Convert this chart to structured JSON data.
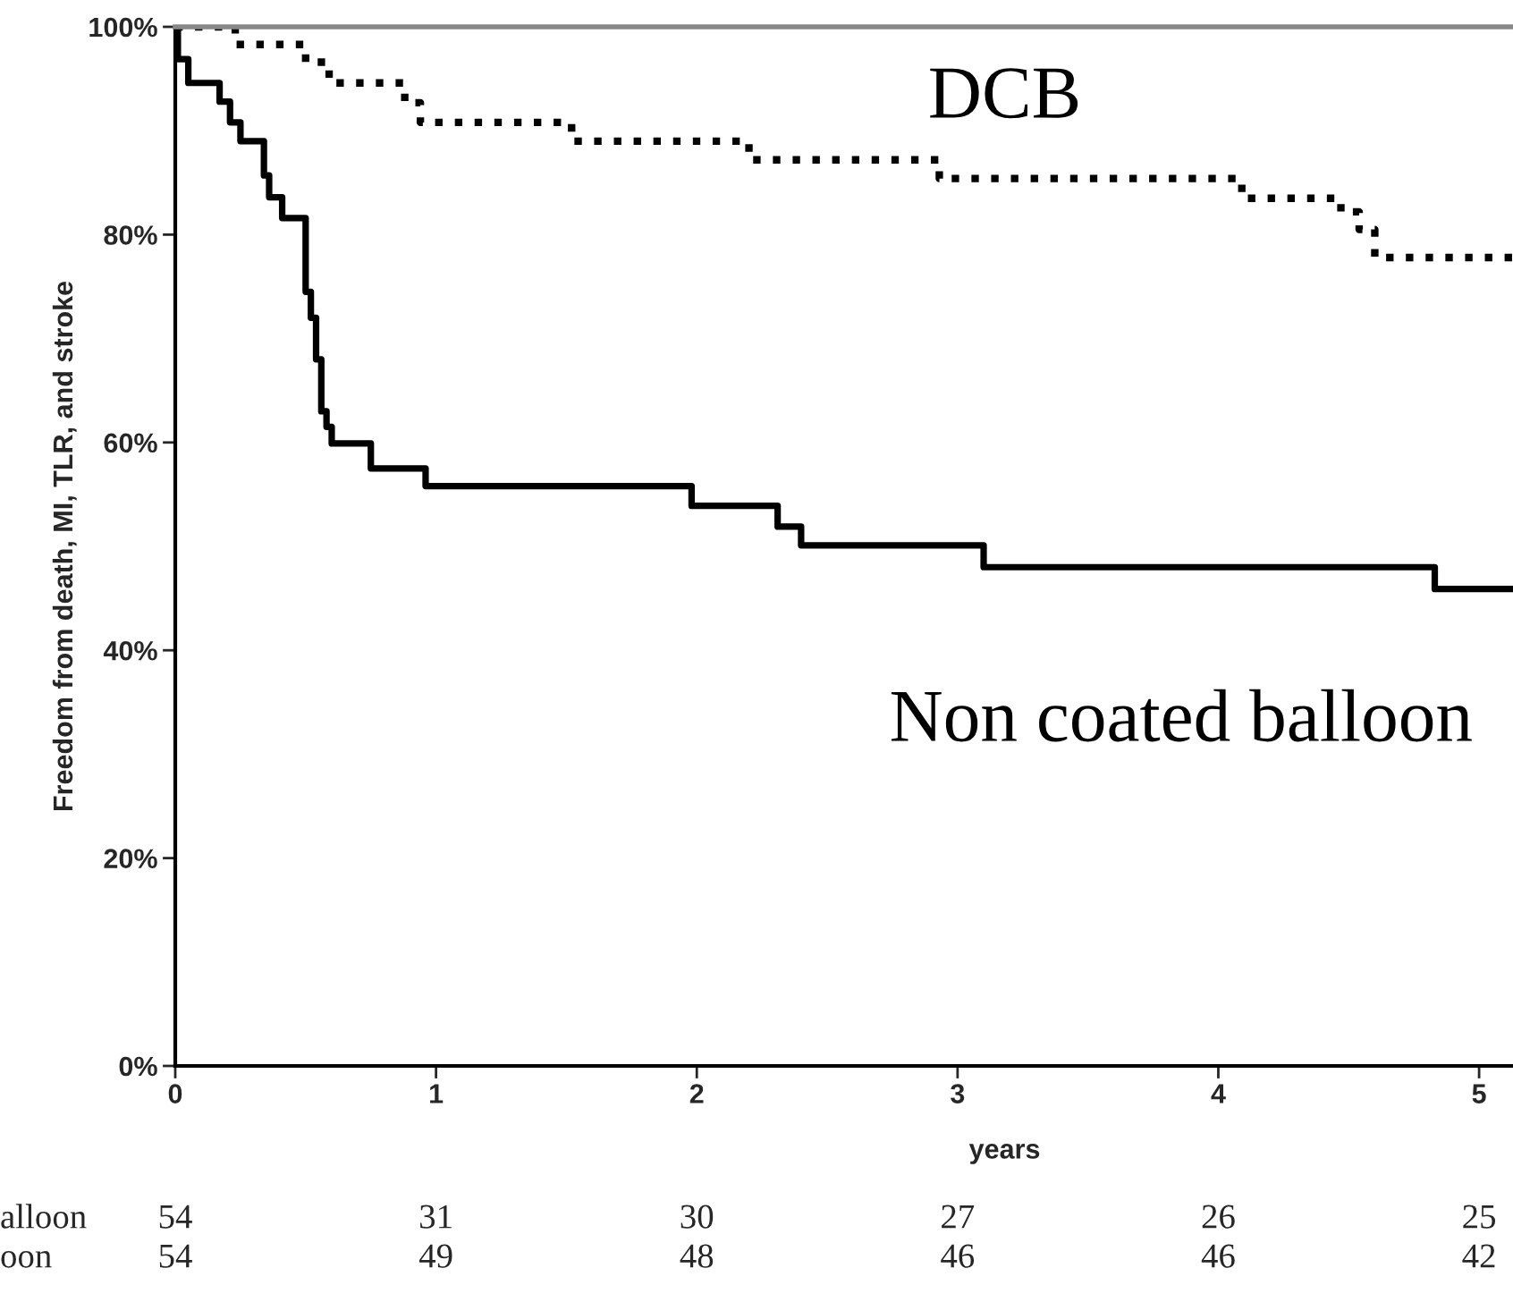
{
  "chart_data": {
    "type": "step",
    "xlabel": "years",
    "ylabel": "Freedom from death, MI, TLR, and stroke",
    "xlim": [
      0,
      5.13
    ],
    "ylim": [
      0,
      100
    ],
    "xticks": [
      0,
      1,
      2,
      3,
      4,
      5
    ],
    "yticks": [
      {
        "value": 0,
        "label": "0%"
      },
      {
        "value": 20,
        "label": "20%"
      },
      {
        "value": 40,
        "label": "40%"
      },
      {
        "value": 60,
        "label": "60%"
      },
      {
        "value": 80,
        "label": "80%"
      },
      {
        "value": 100,
        "label": "100%"
      }
    ],
    "grid": false,
    "legend": false,
    "marker": "none",
    "series": [
      {
        "name": "DCB",
        "color": "#000000",
        "line_style": "dotted",
        "x": [
          0,
          0.23,
          0.5,
          0.59,
          0.88,
          0.94,
          1.52,
          2.2,
          2.93,
          4.09,
          4.47,
          4.54,
          4.6,
          5.13
        ],
        "values": [
          100,
          98.3,
          96.6,
          94.6,
          92.7,
          90.8,
          89.0,
          87.2,
          85.4,
          83.5,
          82.2,
          80.5,
          77.8,
          77.8
        ]
      },
      {
        "name": "Non coated balloon",
        "color": "#000000",
        "line_style": "solid",
        "x": [
          0,
          0.01,
          0.05,
          0.17,
          0.21,
          0.25,
          0.34,
          0.36,
          0.41,
          0.5,
          0.52,
          0.54,
          0.56,
          0.58,
          0.6,
          0.75,
          0.96,
          1.98,
          2.31,
          2.4,
          3.1,
          4.83,
          5.13
        ],
        "values": [
          100,
          96.9,
          94.6,
          92.8,
          90.8,
          89.0,
          85.7,
          83.6,
          81.6,
          74.5,
          72,
          68,
          63,
          61.5,
          59.9,
          57.5,
          55.8,
          53.9,
          51.9,
          50.1,
          48.0,
          45.9,
          45.9
        ]
      }
    ],
    "annotations": [
      "alloon",
      "54",
      "31",
      "30",
      "27",
      "26",
      "25",
      "oon",
      "54",
      "49",
      "48",
      "46",
      "46",
      "42"
    ]
  }
}
